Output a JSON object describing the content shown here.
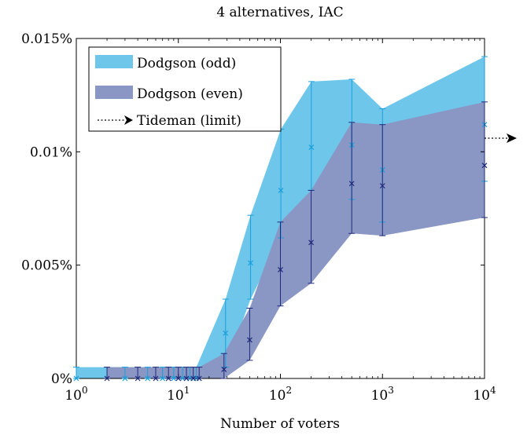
{
  "chart_data": {
    "type": "area",
    "title": "4 alternatives, IAC",
    "xlabel": "Number of voters",
    "ylabel": "",
    "xscale": "log",
    "xlim": [
      1,
      10000
    ],
    "ylim": [
      0,
      0.015
    ],
    "xticks": [
      {
        "value": 1,
        "base": "10",
        "exp": "0"
      },
      {
        "value": 10,
        "base": "10",
        "exp": "1"
      },
      {
        "value": 100,
        "base": "10",
        "exp": "2"
      },
      {
        "value": 1000,
        "base": "10",
        "exp": "3"
      },
      {
        "value": 10000,
        "base": "10",
        "exp": "4"
      }
    ],
    "yticks": [
      {
        "value": 0,
        "label": "0%"
      },
      {
        "value": 0.005,
        "label": "0.005%"
      },
      {
        "value": 0.01,
        "label": "0.01%"
      },
      {
        "value": 0.015,
        "label": "0.015%"
      }
    ],
    "legend_position": "top-left",
    "series": [
      {
        "name": "Dodgson (odd)",
        "color": "#6ec6ea",
        "marker_color": "#1aa0dc",
        "x": [
          1,
          3,
          5,
          7,
          9,
          11,
          13,
          15,
          29,
          51,
          101,
          201,
          501,
          1001,
          10001
        ],
        "y": [
          0,
          0,
          0,
          0,
          0,
          0,
          0,
          0,
          0.002,
          0.0051,
          0.0083,
          0.0102,
          0.0103,
          0.0092,
          0.0112
        ],
        "lower": [
          0,
          0,
          0,
          0,
          0,
          0,
          0,
          0,
          0.0005,
          0.0035,
          0.0062,
          0.0083,
          0.0079,
          0.0069,
          0.0087
        ],
        "upper": [
          0.0005,
          0.0005,
          0.0005,
          0.0005,
          0.0005,
          0.0005,
          0.0005,
          0.0005,
          0.0035,
          0.0072,
          0.011,
          0.0131,
          0.0132,
          0.0119,
          0.0142
        ]
      },
      {
        "name": "Dodgson (even)",
        "color": "#8a96c4",
        "marker_color": "#1f2a7a",
        "x": [
          2,
          4,
          6,
          8,
          10,
          12,
          14,
          16,
          28,
          50,
          100,
          200,
          500,
          1000,
          10000
        ],
        "y": [
          0,
          0,
          0,
          0,
          0,
          0,
          0,
          0,
          0.0004,
          0.0017,
          0.0048,
          0.006,
          0.0086,
          0.0085,
          0.0094
        ],
        "lower": [
          0,
          0,
          0,
          0,
          0,
          0,
          0,
          0,
          0,
          0.0008,
          0.0032,
          0.0042,
          0.0064,
          0.0063,
          0.0071
        ],
        "upper": [
          0.0005,
          0.0005,
          0.0005,
          0.0005,
          0.0005,
          0.0005,
          0.0005,
          0.0005,
          0.0011,
          0.0031,
          0.0069,
          0.0083,
          0.0113,
          0.0112,
          0.0122
        ]
      },
      {
        "name": "Tideman (limit)",
        "type": "limit-arrow",
        "y": 0.0106,
        "color": "#000000"
      }
    ]
  }
}
